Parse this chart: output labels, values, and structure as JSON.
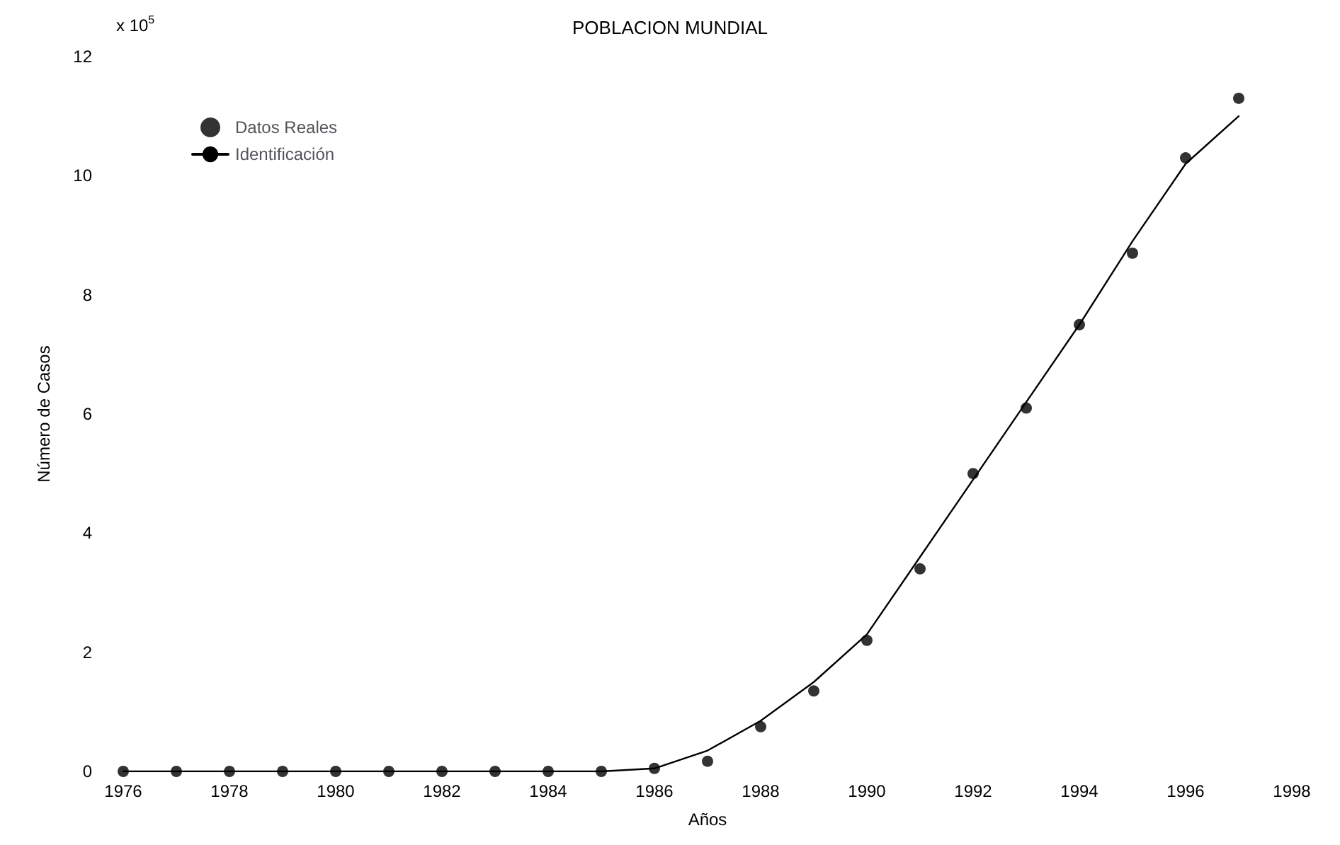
{
  "chart_data": {
    "type": "scatter",
    "title": "POBLACION MUNDIAL",
    "xlabel": "Años",
    "ylabel": "Número de Casos",
    "annotations": [
      "x 10$^{5}$"
    ],
    "xlim": [
      1976,
      1998
    ],
    "xticks": [
      1976,
      1978,
      1980,
      1982,
      1984,
      1986,
      1988,
      1990,
      1992,
      1994,
      1996,
      1998
    ],
    "ylim": [
      0,
      12
    ],
    "yticks": [
      0,
      2,
      4,
      6,
      8,
      10,
      12
    ],
    "grid": false,
    "legend": "top left",
    "series": [
      {
        "name": "Datos Reales",
        "marker": "circle",
        "color": "#000000",
        "x": [
          1976,
          1977,
          1978,
          1979,
          1980,
          1981,
          1982,
          1983,
          1984,
          1985,
          1986,
          1987,
          1988,
          1989,
          1990,
          1991,
          1992,
          1993,
          1994,
          1995,
          1996,
          1997
        ],
        "values": [
          0,
          0,
          0,
          0,
          0,
          0,
          0,
          0,
          0,
          0,
          0.05,
          0.17,
          0.75,
          1.35,
          2.2,
          3.4,
          5.0,
          6.1,
          7.5,
          8.7,
          10.3,
          11.3
        ]
      },
      {
        "name": "Identificación",
        "type": "line",
        "marker": "none",
        "line_style": "solid",
        "color": "#000000",
        "x": [
          1976,
          1978,
          1980,
          1982,
          1984,
          1985,
          1986,
          1987,
          1988,
          1989,
          1990,
          1991,
          1992,
          1993,
          1994,
          1995,
          1996,
          1997
        ],
        "values": [
          0,
          0,
          0,
          0,
          0,
          0,
          0.05,
          0.35,
          0.85,
          1.5,
          2.3,
          3.6,
          4.9,
          6.2,
          7.5,
          8.9,
          10.2,
          11.0
        ]
      }
    ]
  }
}
